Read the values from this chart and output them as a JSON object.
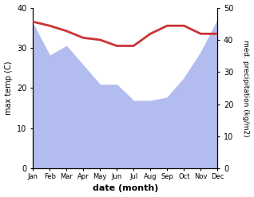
{
  "months": [
    "Jan",
    "Feb",
    "Mar",
    "Apr",
    "May",
    "Jun",
    "Jul",
    "Aug",
    "Sep",
    "Oct",
    "Nov",
    "Dec"
  ],
  "x": [
    0,
    1,
    2,
    3,
    4,
    5,
    6,
    7,
    8,
    9,
    10,
    11
  ],
  "precip": [
    45,
    35,
    38,
    32,
    26,
    26,
    21,
    21,
    22,
    28,
    36,
    46
  ],
  "temp": [
    36.5,
    35.5,
    34.2,
    32.5,
    32.0,
    30.5,
    30.5,
    33.5,
    35.5,
    35.5,
    33.5,
    33.5
  ],
  "temp_color": "#cc3333",
  "precip_fill_color": "#b3bcee",
  "left_ylim": [
    0,
    40
  ],
  "right_ylim": [
    0,
    50
  ],
  "left_ylabel": "max temp (C)",
  "right_ylabel": "med. precipitation (kg/m2)",
  "xlabel": "date (month)",
  "temp_linewidth": 2.0,
  "left_yticks": [
    0,
    10,
    20,
    30,
    40
  ],
  "right_yticks": [
    0,
    10,
    20,
    30,
    40,
    50
  ]
}
